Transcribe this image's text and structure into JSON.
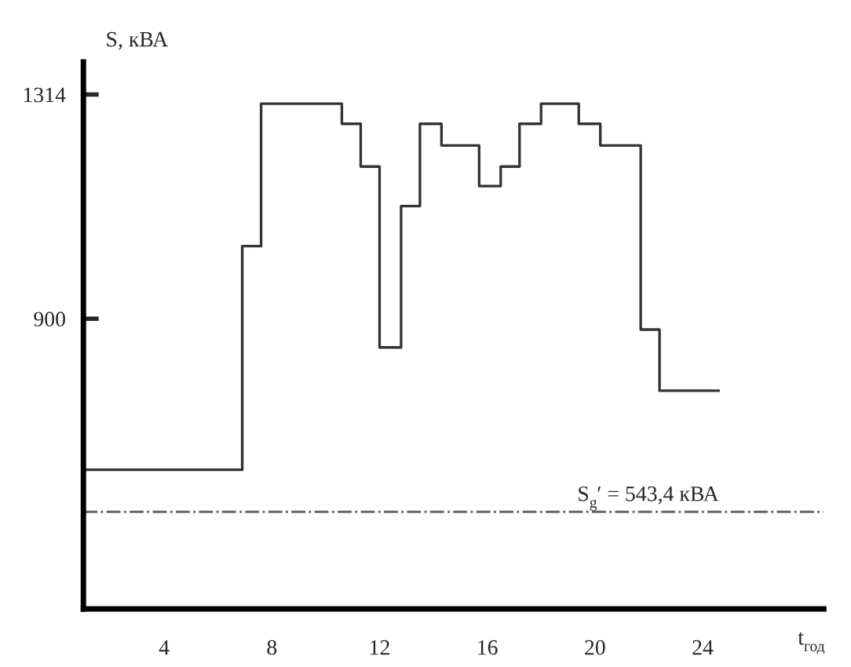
{
  "chart_data": {
    "type": "step",
    "xlabel": "t$_{год}$",
    "ylabel": "S, кВА",
    "x": [
      1.0,
      6.9,
      7.6,
      10.6,
      11.3,
      12.0,
      12.8,
      13.5,
      14.3,
      15.7,
      16.5,
      17.2,
      18.0,
      19.4,
      20.2,
      21.7,
      22.4,
      24.6
    ],
    "series": [
      {
        "color": "#333333",
        "values": [
          621,
          1034,
          1297,
          1260,
          1181,
          847,
          1108,
          1260,
          1220,
          1145,
          1181,
          1260,
          1297,
          1260,
          1220,
          880,
          767,
          767
        ]
      }
    ],
    "xlim": [
      1,
      28.5
    ],
    "xticks": [
      4,
      8,
      12,
      16,
      20,
      24
    ],
    "ylim": [
      364,
      1374
    ],
    "yticks": [
      900,
      1314
    ],
    "ref_lines": [
      {
        "axis": "y",
        "value": 543.4,
        "label": "S$_{g}$′ = 543,4 кВА",
        "color": "#666666",
        "line_style": "dashdot"
      }
    ],
    "grid": false,
    "legend": false
  }
}
